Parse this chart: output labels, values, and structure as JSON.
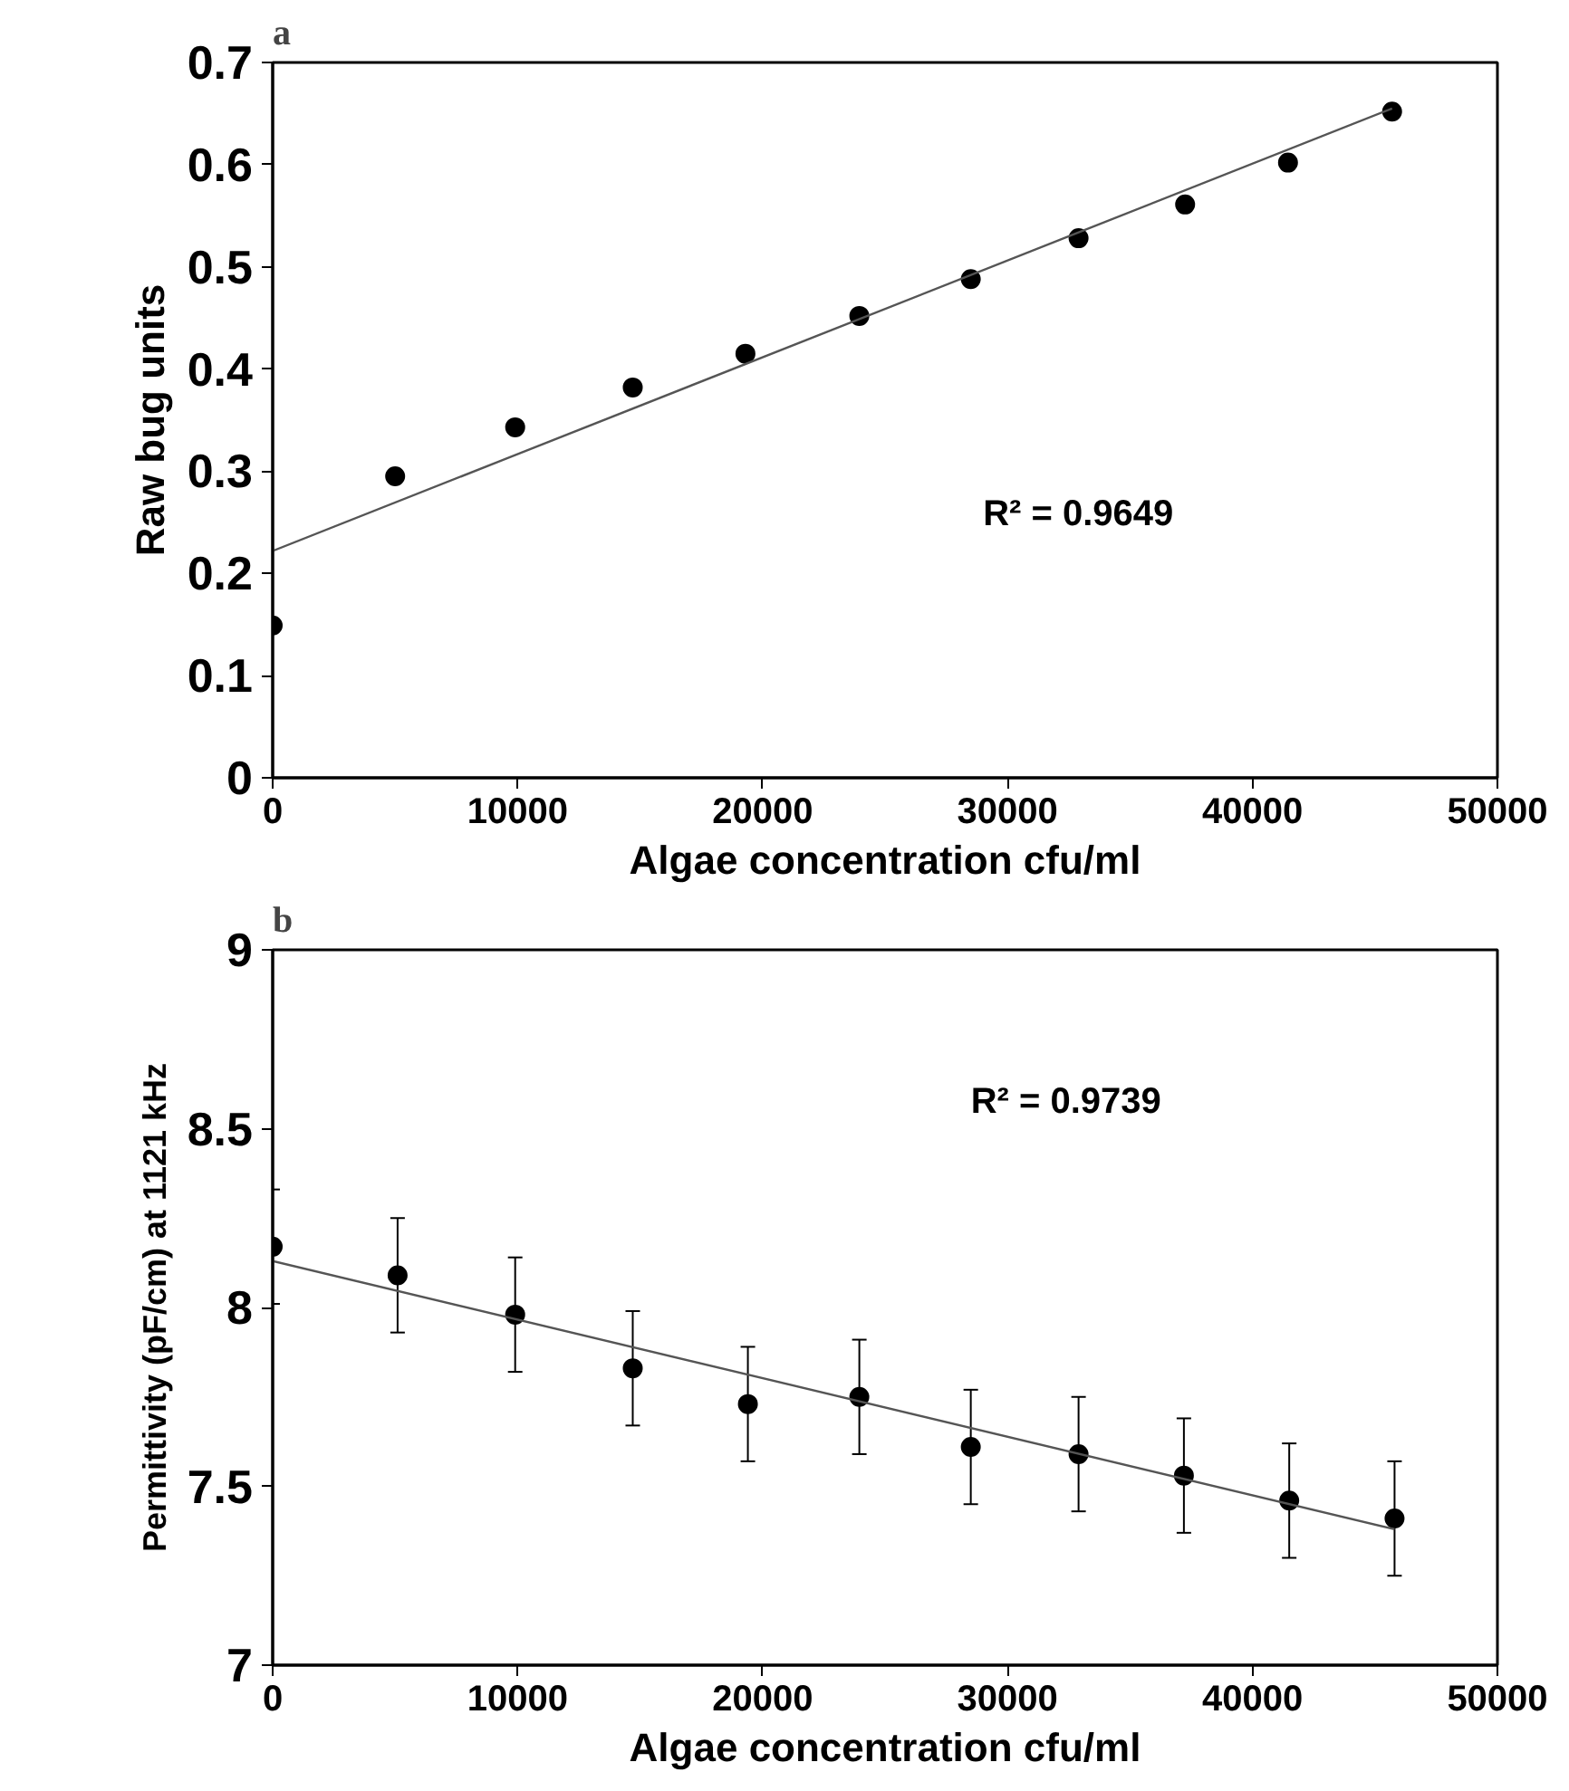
{
  "chart_data": [
    {
      "type": "scatter",
      "title": "a",
      "xlabel": "Algae concentration cfu/ml",
      "ylabel": "Raw bug units",
      "x": [
        0,
        5000,
        9900,
        14700,
        19300,
        23950,
        28500,
        32900,
        37250,
        41450,
        45700
      ],
      "series": [
        {
          "marker": "circle",
          "color": "#000000",
          "values": [
            0.149,
            0.295,
            0.343,
            0.382,
            0.415,
            0.452,
            0.488,
            0.528,
            0.561,
            0.602,
            0.652
          ]
        },
        {
          "type": "line",
          "marker": "none",
          "color": "#555555",
          "x": [
            0,
            45700
          ],
          "values": [
            0.222,
            0.655
          ]
        }
      ],
      "xlim": [
        0,
        50000
      ],
      "xticks": [
        0,
        10000,
        20000,
        30000,
        40000,
        50000
      ],
      "ylim": [
        0,
        0.7
      ],
      "yticks": [
        0,
        0.1,
        0.2,
        0.3,
        0.4,
        0.5,
        0.6,
        0.7
      ],
      "annotations": [
        "R² = 0.9649"
      ],
      "grid": false
    },
    {
      "type": "scatter",
      "title": "b",
      "xlabel": "Algae concentration cfu/ml",
      "ylabel": "Permittivity (pF/cm) at 1121 kHz",
      "x": [
        0,
        5100,
        9900,
        14700,
        19400,
        23950,
        28500,
        32900,
        37200,
        41500,
        45800
      ],
      "series": [
        {
          "marker": "circle",
          "color": "#000000",
          "values": [
            8.17,
            8.09,
            7.98,
            7.83,
            7.73,
            7.75,
            7.61,
            7.59,
            7.53,
            7.46,
            7.41
          ],
          "errors": [
            0.16,
            0.16,
            0.16,
            0.16,
            0.16,
            0.16,
            0.16,
            0.16,
            0.16,
            0.16,
            0.16
          ]
        },
        {
          "type": "line",
          "marker": "none",
          "color": "#555555",
          "x": [
            0,
            45800
          ],
          "values": [
            8.13,
            7.38
          ]
        }
      ],
      "xlim": [
        0,
        50000
      ],
      "xticks": [
        0,
        10000,
        20000,
        30000,
        40000,
        50000
      ],
      "ylim": [
        7,
        9
      ],
      "yticks": [
        7,
        7.5,
        8,
        8.5,
        9
      ],
      "annotations": [
        "R² = 0.9739"
      ],
      "grid": false
    }
  ]
}
